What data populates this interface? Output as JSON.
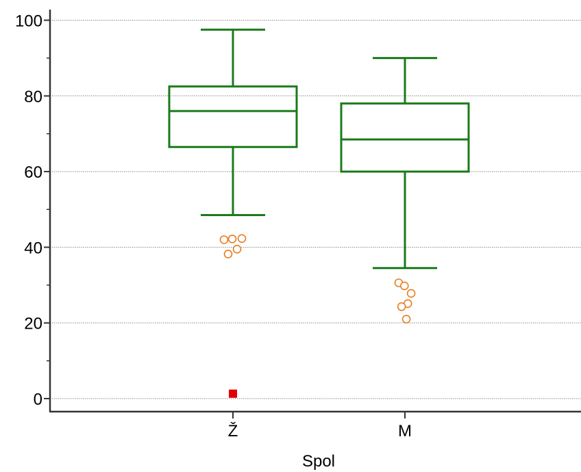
{
  "chart_data": {
    "type": "box",
    "xlabel": "Spol",
    "ylabel": "",
    "ylim": [
      -3,
      103
    ],
    "yticks": [
      0,
      20,
      40,
      60,
      80,
      100
    ],
    "grid": true,
    "categories": [
      "Ž",
      "M"
    ],
    "boxes": [
      {
        "category": "Ž",
        "whisker_low": 48.5,
        "q1": 66.5,
        "median": 76,
        "q3": 82.5,
        "whisker_high": 97.5,
        "outliers": [
          42,
          42.2,
          42.3,
          39.5,
          38.2
        ],
        "far_outliers": [
          1.3
        ]
      },
      {
        "category": "M",
        "whisker_low": 34.5,
        "q1": 60,
        "median": 68.5,
        "q3": 78,
        "whisker_high": 90,
        "outliers": [
          30.6,
          29.8,
          27.8,
          25.1,
          24.3,
          21
        ]
      }
    ],
    "colors": {
      "box": "#1a7a1a",
      "outlier": "#e67e22",
      "far_outlier": "#e00000",
      "grid": "#888888",
      "axis": "#333333"
    }
  }
}
